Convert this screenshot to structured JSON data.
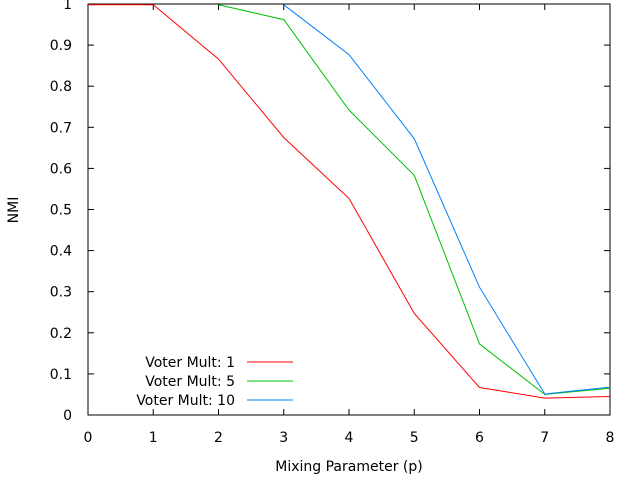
{
  "chart_data": {
    "type": "line",
    "title": "",
    "xlabel": "Mixing Parameter (p)",
    "ylabel": "NMI",
    "xlim": [
      0,
      8
    ],
    "ylim": [
      0,
      1
    ],
    "x_ticks": [
      "0",
      "1",
      "2",
      "3",
      "4",
      "5",
      "6",
      "7",
      "8"
    ],
    "y_ticks": [
      "0",
      "0.1",
      "0.2",
      "0.3",
      "0.4",
      "0.5",
      "0.6",
      "0.7",
      "0.8",
      "0.9",
      "1"
    ],
    "grid": false,
    "legend_position": "bottom-left",
    "series": [
      {
        "name": "Voter Mult: 1",
        "color": "#ff0000",
        "x": [
          0,
          1,
          2,
          3,
          4,
          5,
          6,
          7,
          8
        ],
        "y": [
          0.998,
          0.998,
          0.866,
          0.675,
          0.527,
          0.247,
          0.067,
          0.041,
          0.045
        ]
      },
      {
        "name": "Voter Mult: 5",
        "color": "#00c000",
        "x": [
          2,
          3,
          4,
          5,
          6,
          7,
          8
        ],
        "y": [
          0.998,
          0.962,
          0.742,
          0.583,
          0.173,
          0.05,
          0.065
        ]
      },
      {
        "name": "Voter Mult: 10",
        "color": "#0080ff",
        "x": [
          3,
          4,
          5,
          6,
          7,
          8
        ],
        "y": [
          0.998,
          0.877,
          0.672,
          0.311,
          0.051,
          0.068
        ]
      }
    ]
  }
}
